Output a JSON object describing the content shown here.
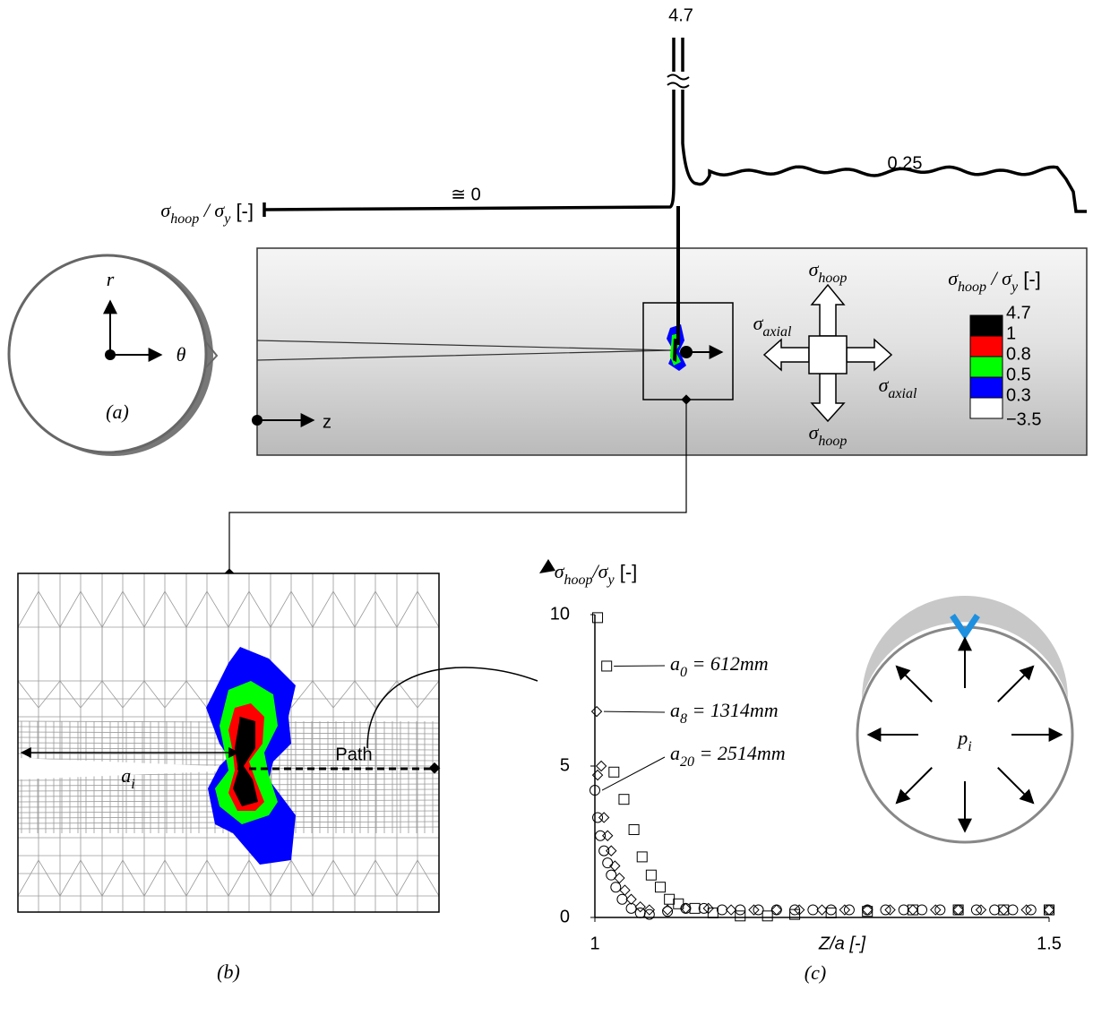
{
  "stress_profile": {
    "label": [
      "σ",
      "hoop",
      " / σ",
      "y",
      " [-]"
    ],
    "peak": 4.7,
    "left_value": "≅ 0",
    "right_value": 0.25
  },
  "panel_a": {
    "r": "r",
    "theta": "θ",
    "label": "(a)"
  },
  "contour": {
    "z": "z",
    "hoop_top": [
      "σ",
      "hoop"
    ],
    "hoop_bottom": [
      "σ",
      "hoop"
    ],
    "axial_left": [
      "σ",
      "axial"
    ],
    "axial_right": [
      "σ",
      "axial"
    ],
    "legend": {
      "title": [
        "σ",
        "hoop",
        " / σ",
        "y",
        " [-]"
      ],
      "levels": [
        4.7,
        1,
        0.8,
        0.5,
        0.3,
        {
          "value": -3.5,
          "label": "−3.5"
        }
      ],
      "colors": [
        "#000000",
        "#ff0000",
        "#00ff00",
        "#0000ff",
        "#ffffff"
      ]
    }
  },
  "panel_b": {
    "path_label": "Path",
    "dimension": [
      "a",
      "i"
    ],
    "label": "(b)"
  },
  "chart_data": {
    "type": "scatter",
    "ylabel": [
      "σ",
      "hoop",
      "/σ",
      "y",
      " [-]"
    ],
    "xlabel": "Z/a [-]",
    "panel_label": "(c)",
    "pressure_label": [
      "p",
      "i"
    ],
    "xlim": [
      1,
      1.5
    ],
    "ylim": [
      0,
      10
    ],
    "xticks": [
      1,
      1.5
    ],
    "yticks": [
      0,
      5,
      10
    ],
    "series": [
      {
        "name": [
          "a",
          "0",
          " = 612mm"
        ],
        "marker": "square",
        "color": "#000000",
        "x": [
          1.003,
          1.013,
          1.021,
          1.032,
          1.043,
          1.052,
          1.062,
          1.072,
          1.082,
          1.092,
          1.11,
          1.13,
          1.16,
          1.19,
          1.22,
          1.26,
          1.3,
          1.35,
          1.4,
          1.45,
          1.5
        ],
        "values": [
          9.9,
          8.3,
          4.8,
          3.9,
          2.9,
          2.0,
          1.4,
          1.0,
          0.6,
          0.45,
          0.3,
          0.15,
          0.05,
          0.05,
          0.1,
          0.15,
          0.2,
          0.25,
          0.25,
          0.25,
          0.25
        ]
      },
      {
        "name": [
          "a",
          "8",
          " = 1314mm"
        ],
        "marker": "diamond",
        "color": "#000000",
        "x": [
          1.002,
          1.007,
          1.003,
          1.01,
          1.014,
          1.018,
          1.022,
          1.027,
          1.033,
          1.04,
          1.05,
          1.06,
          1.08,
          1.1,
          1.125,
          1.15,
          1.175,
          1.2,
          1.225,
          1.25,
          1.275,
          1.3,
          1.325,
          1.35,
          1.375,
          1.4,
          1.425,
          1.45,
          1.475,
          1.5
        ],
        "values": [
          6.8,
          5.0,
          4.7,
          3.3,
          2.7,
          2.2,
          1.7,
          1.3,
          0.9,
          0.6,
          0.35,
          0.25,
          0.25,
          0.3,
          0.3,
          0.25,
          0.25,
          0.25,
          0.25,
          0.25,
          0.25,
          0.25,
          0.25,
          0.25,
          0.25,
          0.25,
          0.25,
          0.25,
          0.25,
          0.25
        ]
      },
      {
        "name": [
          "a",
          "20",
          " = 2514mm"
        ],
        "marker": "circle",
        "color": "#000000",
        "x": [
          1.0,
          1.003,
          1.006,
          1.01,
          1.014,
          1.018,
          1.023,
          1.03,
          1.04,
          1.05,
          1.06,
          1.08,
          1.1,
          1.12,
          1.14,
          1.16,
          1.18,
          1.2,
          1.22,
          1.24,
          1.26,
          1.28,
          1.3,
          1.32,
          1.34,
          1.36,
          1.38,
          1.4,
          1.42,
          1.44,
          1.46,
          1.48,
          1.5
        ],
        "values": [
          4.2,
          3.3,
          2.7,
          2.2,
          1.8,
          1.4,
          1.0,
          0.6,
          0.3,
          0.15,
          0.1,
          0.2,
          0.3,
          0.3,
          0.25,
          0.25,
          0.25,
          0.25,
          0.25,
          0.25,
          0.25,
          0.25,
          0.25,
          0.25,
          0.25,
          0.25,
          0.25,
          0.25,
          0.25,
          0.25,
          0.25,
          0.25,
          0.25
        ]
      }
    ]
  }
}
